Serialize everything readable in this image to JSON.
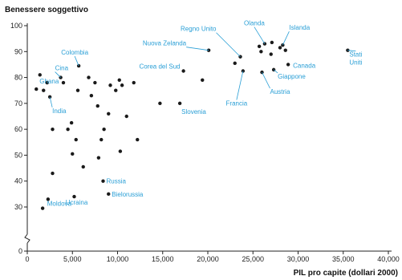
{
  "chart_data": {
    "type": "scatter",
    "title": "",
    "ylabel": "Benessere soggettivo",
    "xlabel": "PIL pro capite (dollari 2000)",
    "xlim": [
      0,
      40000
    ],
    "ylim": [
      0,
      100
    ],
    "y_axis_break": true,
    "grid": false,
    "xticks": [
      0,
      5000,
      10000,
      15000,
      20000,
      25000,
      30000,
      35000,
      40000
    ],
    "xtick_labels": [
      "0",
      "5,000",
      "10,000",
      "15,000",
      "20,000",
      "25,000",
      "30,000",
      "35,000",
      "40,000"
    ],
    "yticks": [
      0,
      30,
      40,
      50,
      60,
      70,
      80,
      90,
      100
    ],
    "ytick_labels": [
      "0",
      "30",
      "40",
      "50",
      "60",
      "70",
      "80",
      "90",
      "100"
    ],
    "point_color": "#1a1a1a",
    "label_color": "#2a9fd6",
    "points": [
      {
        "x": 1000,
        "y": 75.5,
        "label": "Ghana"
      },
      {
        "x": 1400,
        "y": 81
      },
      {
        "x": 1800,
        "y": 75
      },
      {
        "x": 2200,
        "y": 78
      },
      {
        "x": 2500,
        "y": 72.5,
        "label": "India"
      },
      {
        "x": 2800,
        "y": 60
      },
      {
        "x": 2800,
        "y": 43
      },
      {
        "x": 1700,
        "y": 29.5
      },
      {
        "x": 2300,
        "y": 33,
        "label": "Moldova"
      },
      {
        "x": 3700,
        "y": 80,
        "label": "Cina"
      },
      {
        "x": 4000,
        "y": 78
      },
      {
        "x": 4500,
        "y": 60
      },
      {
        "x": 4900,
        "y": 62.5
      },
      {
        "x": 5000,
        "y": 50.5
      },
      {
        "x": 5400,
        "y": 56
      },
      {
        "x": 5200,
        "y": 34,
        "label": "Ucraina"
      },
      {
        "x": 5700,
        "y": 84.5,
        "label": "Colombia"
      },
      {
        "x": 5600,
        "y": 75
      },
      {
        "x": 6200,
        "y": 45.5
      },
      {
        "x": 6800,
        "y": 80
      },
      {
        "x": 7100,
        "y": 73
      },
      {
        "x": 7500,
        "y": 78
      },
      {
        "x": 7800,
        "y": 69
      },
      {
        "x": 8200,
        "y": 56
      },
      {
        "x": 8500,
        "y": 60
      },
      {
        "x": 7900,
        "y": 49
      },
      {
        "x": 8400,
        "y": 40,
        "label": "Russia"
      },
      {
        "x": 9000,
        "y": 35,
        "label": "Bielorussia"
      },
      {
        "x": 9000,
        "y": 66
      },
      {
        "x": 9200,
        "y": 77
      },
      {
        "x": 9800,
        "y": 75
      },
      {
        "x": 10200,
        "y": 79
      },
      {
        "x": 10500,
        "y": 77
      },
      {
        "x": 10300,
        "y": 51.5
      },
      {
        "x": 11000,
        "y": 65
      },
      {
        "x": 11800,
        "y": 78
      },
      {
        "x": 12200,
        "y": 56
      },
      {
        "x": 14700,
        "y": 70
      },
      {
        "x": 16900,
        "y": 70,
        "label": "Slovenia"
      },
      {
        "x": 17300,
        "y": 82.5,
        "label": "Corea del Sud"
      },
      {
        "x": 19400,
        "y": 79
      },
      {
        "x": 20100,
        "y": 90.5,
        "label": "Nuova Zelanda"
      },
      {
        "x": 23000,
        "y": 85.5
      },
      {
        "x": 23600,
        "y": 88,
        "label": "Regno Unito"
      },
      {
        "x": 23900,
        "y": 82.5,
        "label": "Francia"
      },
      {
        "x": 25700,
        "y": 92
      },
      {
        "x": 25900,
        "y": 90
      },
      {
        "x": 26300,
        "y": 93,
        "label": "Olanda"
      },
      {
        "x": 26000,
        "y": 82,
        "label": "Austria"
      },
      {
        "x": 27000,
        "y": 89
      },
      {
        "x": 27100,
        "y": 93.5
      },
      {
        "x": 27300,
        "y": 83,
        "label": "Giappone"
      },
      {
        "x": 28000,
        "y": 91.5
      },
      {
        "x": 28300,
        "y": 92.5,
        "label": "Islanda"
      },
      {
        "x": 28600,
        "y": 90.5
      },
      {
        "x": 28900,
        "y": 85,
        "label": "Canada"
      },
      {
        "x": 35500,
        "y": 90.5,
        "label": "Stati Uniti"
      }
    ]
  }
}
